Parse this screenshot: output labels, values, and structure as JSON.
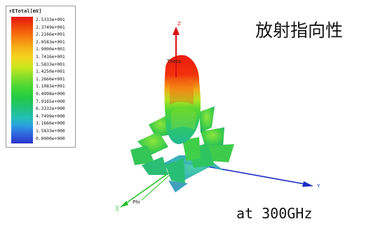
{
  "legend": {
    "title": "rETotal[mV]",
    "values": [
      "2.5333e+001",
      "2.3749e+001",
      "2.2166e+001",
      "2.0583e+001",
      "1.9000e+001",
      "1.7416e+001",
      "1.5833e+001",
      "1.4250e+001",
      "1.2666e+001",
      "1.1083e+001",
      "9.4998e+000",
      "7.9165e+000",
      "6.3332e+000",
      "4.7499e+000",
      "3.1666e+000",
      "1.5833e+000",
      "0.0000e+000"
    ]
  },
  "title": "放射指向性",
  "frequency_label": "at  300GHz",
  "axes": {
    "z": "Z",
    "y": "Y",
    "phi": "Phi",
    "theta": "Theta"
  },
  "colors": {
    "z_axis": "#e01010",
    "y_axis": "#1020c0",
    "x_axis": "#20c020"
  }
}
